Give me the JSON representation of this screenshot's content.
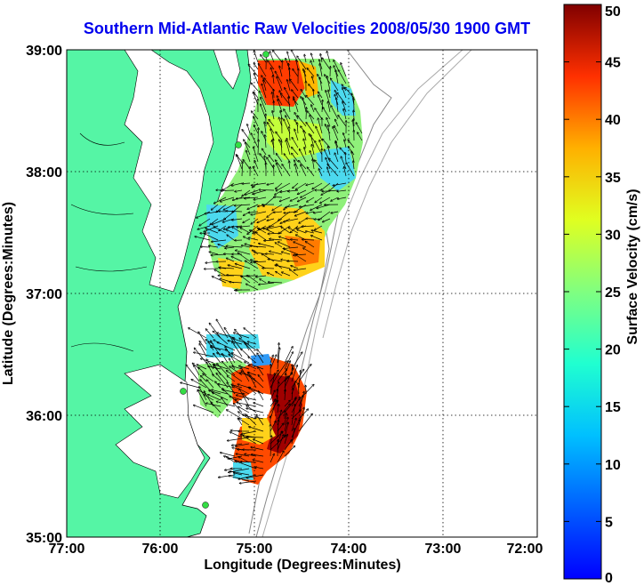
{
  "title": "Southern Mid-Atlantic Raw Velocities 2008/05/30 1900 GMT",
  "map": {
    "xlabel": "Longitude (Degrees:Minutes)",
    "ylabel": "Latitude (Degrees:Minutes)",
    "x_ticks": [
      "77:00",
      "76:00",
      "75:00",
      "74:00",
      "73:00",
      "72:00"
    ],
    "y_ticks": [
      "39:00",
      "38:00",
      "37:00",
      "36:00",
      "35:00"
    ],
    "land_color": "#55f5a5",
    "water_color": "#ffffff"
  },
  "colorbar": {
    "label": "Surface Velocity (cm/s)",
    "ticks": [
      "50",
      "45",
      "40",
      "35",
      "30",
      "25",
      "20",
      "15",
      "10",
      "5",
      "0"
    ],
    "range": [
      0,
      50
    ]
  },
  "stations": [
    "station",
    "station",
    "station",
    "station"
  ]
}
